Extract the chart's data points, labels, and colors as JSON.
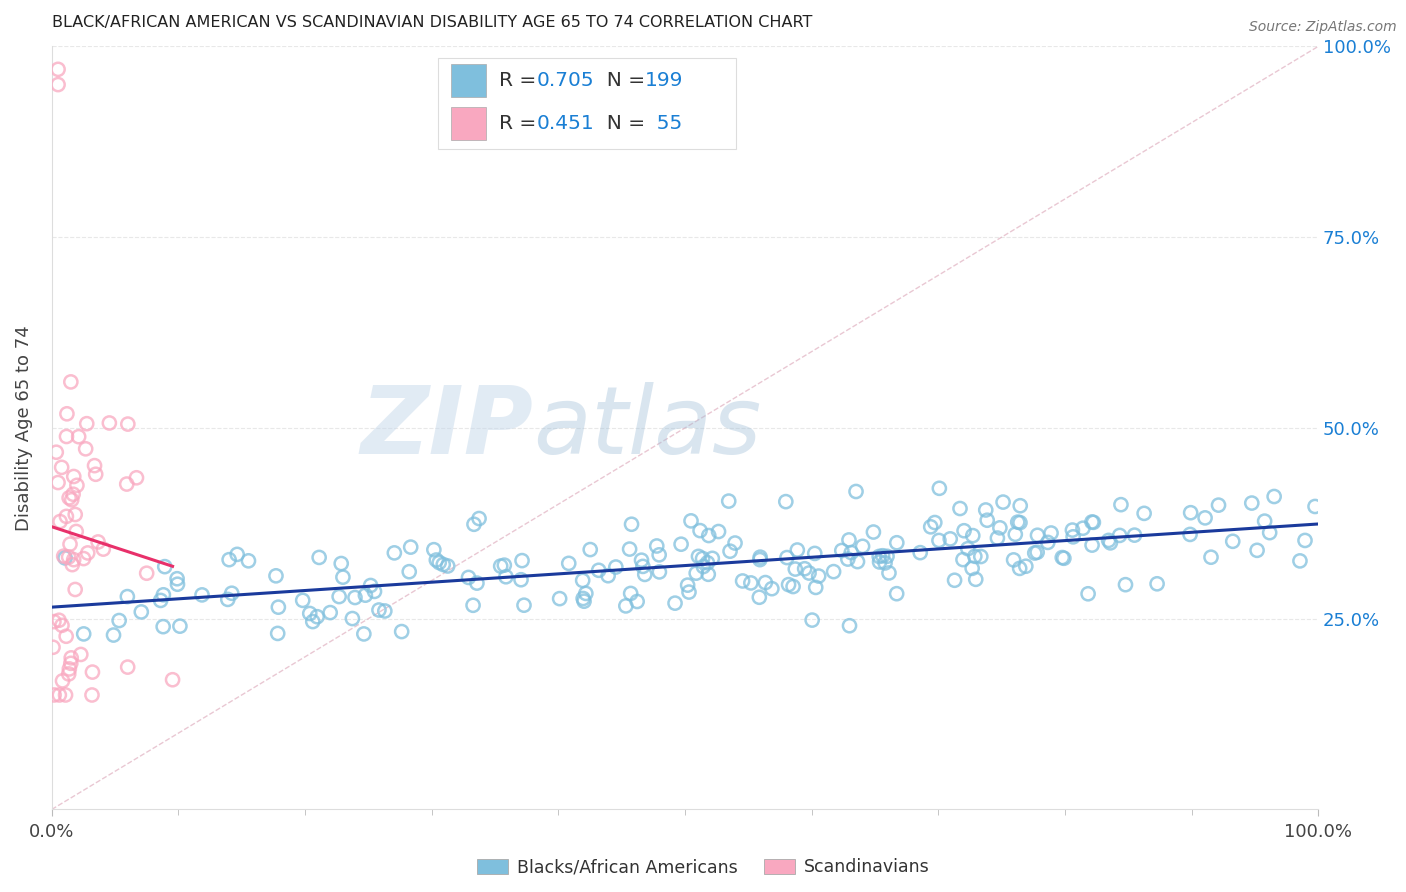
{
  "title": "BLACK/AFRICAN AMERICAN VS SCANDINAVIAN DISABILITY AGE 65 TO 74 CORRELATION CHART",
  "source": "Source: ZipAtlas.com",
  "ylabel": "Disability Age 65 to 74",
  "blue_R": 0.705,
  "blue_N": 199,
  "pink_R": 0.451,
  "pink_N": 55,
  "blue_color": "#7fbfdd",
  "pink_color": "#f9a8c0",
  "blue_line_color": "#1a3a9c",
  "pink_line_color": "#e8306a",
  "diag_color": "#cccccc",
  "legend_label_blue": "Blacks/African Americans",
  "legend_label_pink": "Scandinavians",
  "watermark_zip": "ZIP",
  "watermark_atlas": "atlas",
  "title_color": "#222222",
  "stat_color": "#1a7fd4",
  "background_color": "#ffffff",
  "grid_color": "#e8e8e8",
  "ylim": [
    0,
    1
  ],
  "xlim": [
    0,
    1
  ]
}
